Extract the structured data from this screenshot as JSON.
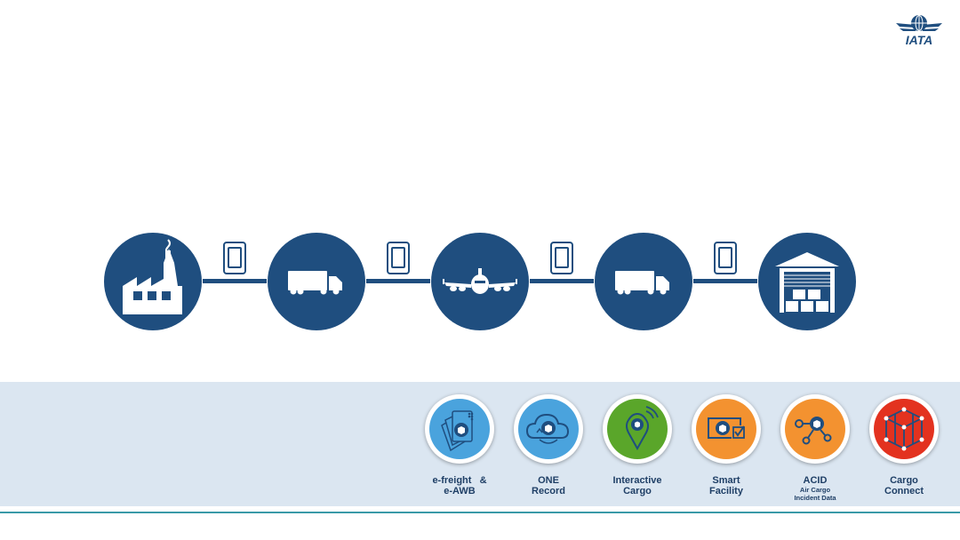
{
  "logo": {
    "text": "IATA"
  },
  "chain": {
    "nodes": [
      {
        "icon": "factory-icon"
      },
      {
        "icon": "truck-icon"
      },
      {
        "icon": "airplane-icon"
      },
      {
        "icon": "truck-icon"
      },
      {
        "icon": "warehouse-icon"
      }
    ],
    "connector_icon": "tablet-icon"
  },
  "solutions": [
    {
      "line1": "e-freight   &",
      "line2": "e-AWB",
      "sub": "",
      "color": "#4aa3dd",
      "icon": "documents-icon"
    },
    {
      "line1": "ONE",
      "line2": "Record",
      "sub": "",
      "color": "#4aa3dd",
      "icon": "cloud-icon"
    },
    {
      "line1": "Interactive",
      "line2": "Cargo",
      "sub": "",
      "color": "#5aa62a",
      "icon": "location-pin-icon"
    },
    {
      "line1": "Smart",
      "line2": "Facility",
      "sub": "",
      "color": "#f39230",
      "icon": "smart-facility-icon"
    },
    {
      "line1": "ACID",
      "line2": "Air Cargo",
      "sub": "Incident Data",
      "color": "#f39230",
      "icon": "network-icon"
    },
    {
      "line1": "Cargo",
      "line2": "Connect",
      "sub": "",
      "color": "#e3321f",
      "icon": "cube-network-icon"
    }
  ],
  "colors": {
    "navy": "#1f4e7f",
    "band": "#dbe6f1",
    "accent_line": "#3a9aa8"
  }
}
